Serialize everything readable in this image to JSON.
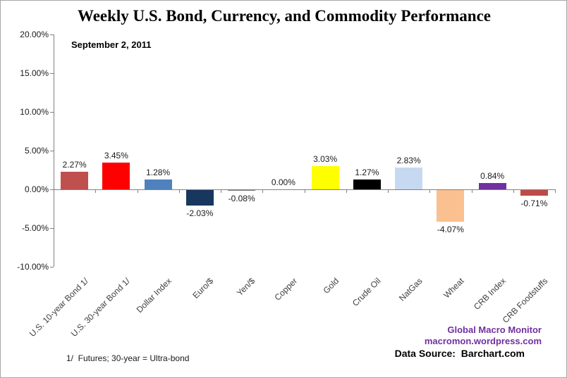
{
  "title": "Weekly U.S. Bond, Currency, and Commodity Performance",
  "subtitle": "September 2, 2011",
  "footnote": "1/  Futures; 30-year = Ultra-bond",
  "credits": {
    "line1": "Global Macro Monitor",
    "line2": "macromon.wordpress.com",
    "color": "#7030A0"
  },
  "data_source": "Data Source:  Barchart.com",
  "chart_data": {
    "type": "bar",
    "title": "Weekly U.S. Bond, Currency, and Commodity Performance",
    "subtitle": "September 2, 2011",
    "categories": [
      "U.S. 10-year Bond 1/",
      "U.S. 30-year Bond 1/",
      "Dollar Index",
      "Euro/$",
      "Yen/$",
      "Copper",
      "Gold",
      "Crude Oil",
      "NatGas",
      "Wheat",
      "CRB Index",
      "CRB Foodstuffs"
    ],
    "values": [
      2.27,
      3.45,
      1.28,
      -2.03,
      -0.08,
      0.0,
      3.03,
      1.27,
      2.83,
      -4.07,
      0.84,
      -0.71
    ],
    "value_labels": [
      "2.27%",
      "3.45%",
      "1.28%",
      "-2.03%",
      "-0.08%",
      "0.00%",
      "3.03%",
      "1.27%",
      "2.83%",
      "-4.07%",
      "0.84%",
      "-0.71%"
    ],
    "bar_colors": [
      "#C0504D",
      "#FF0000",
      "#4F81BD",
      "#17375E",
      "#808080",
      "#808080",
      "#FFFF00",
      "#000000",
      "#C6D9F1",
      "#FAC090",
      "#7030A0",
      "#BE4B48"
    ],
    "xlabel": "",
    "ylabel": "",
    "ylim": [
      -10,
      20
    ],
    "ytick_step": 5,
    "ytick_labels": [
      "20.00%",
      "15.00%",
      "10.00%",
      "5.00%",
      "0.00%",
      "-5.00%",
      "-10.00%"
    ],
    "grid": false,
    "legend": "none",
    "axis_color": "#808080"
  }
}
